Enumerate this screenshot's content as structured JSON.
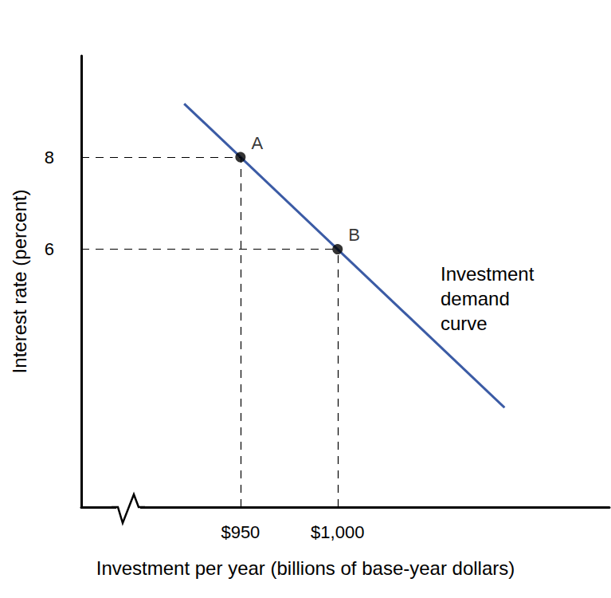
{
  "chart_data": {
    "type": "line",
    "x_label": "Investment per year (billions of base-year dollars)",
    "y_label": "Interest rate (percent)",
    "xlim": [
      868,
      1140
    ],
    "ylim": [
      0.4,
      10.2
    ],
    "xticks": [
      {
        "value": 950,
        "label": "$950"
      },
      {
        "value": 1000,
        "label": "$1,000"
      }
    ],
    "yticks": [
      6,
      8
    ],
    "grid": false,
    "series": [
      {
        "name": "Investment demand curve",
        "color": "#3b5ba5",
        "x": [
          921,
          1086
        ],
        "values": [
          9.16,
          2.56
        ]
      }
    ],
    "points": {
      "marker": "circle",
      "color": "#000000",
      "labels": [
        "A",
        "B"
      ],
      "x": [
        950,
        1000
      ],
      "values": [
        8,
        6
      ]
    }
  }
}
